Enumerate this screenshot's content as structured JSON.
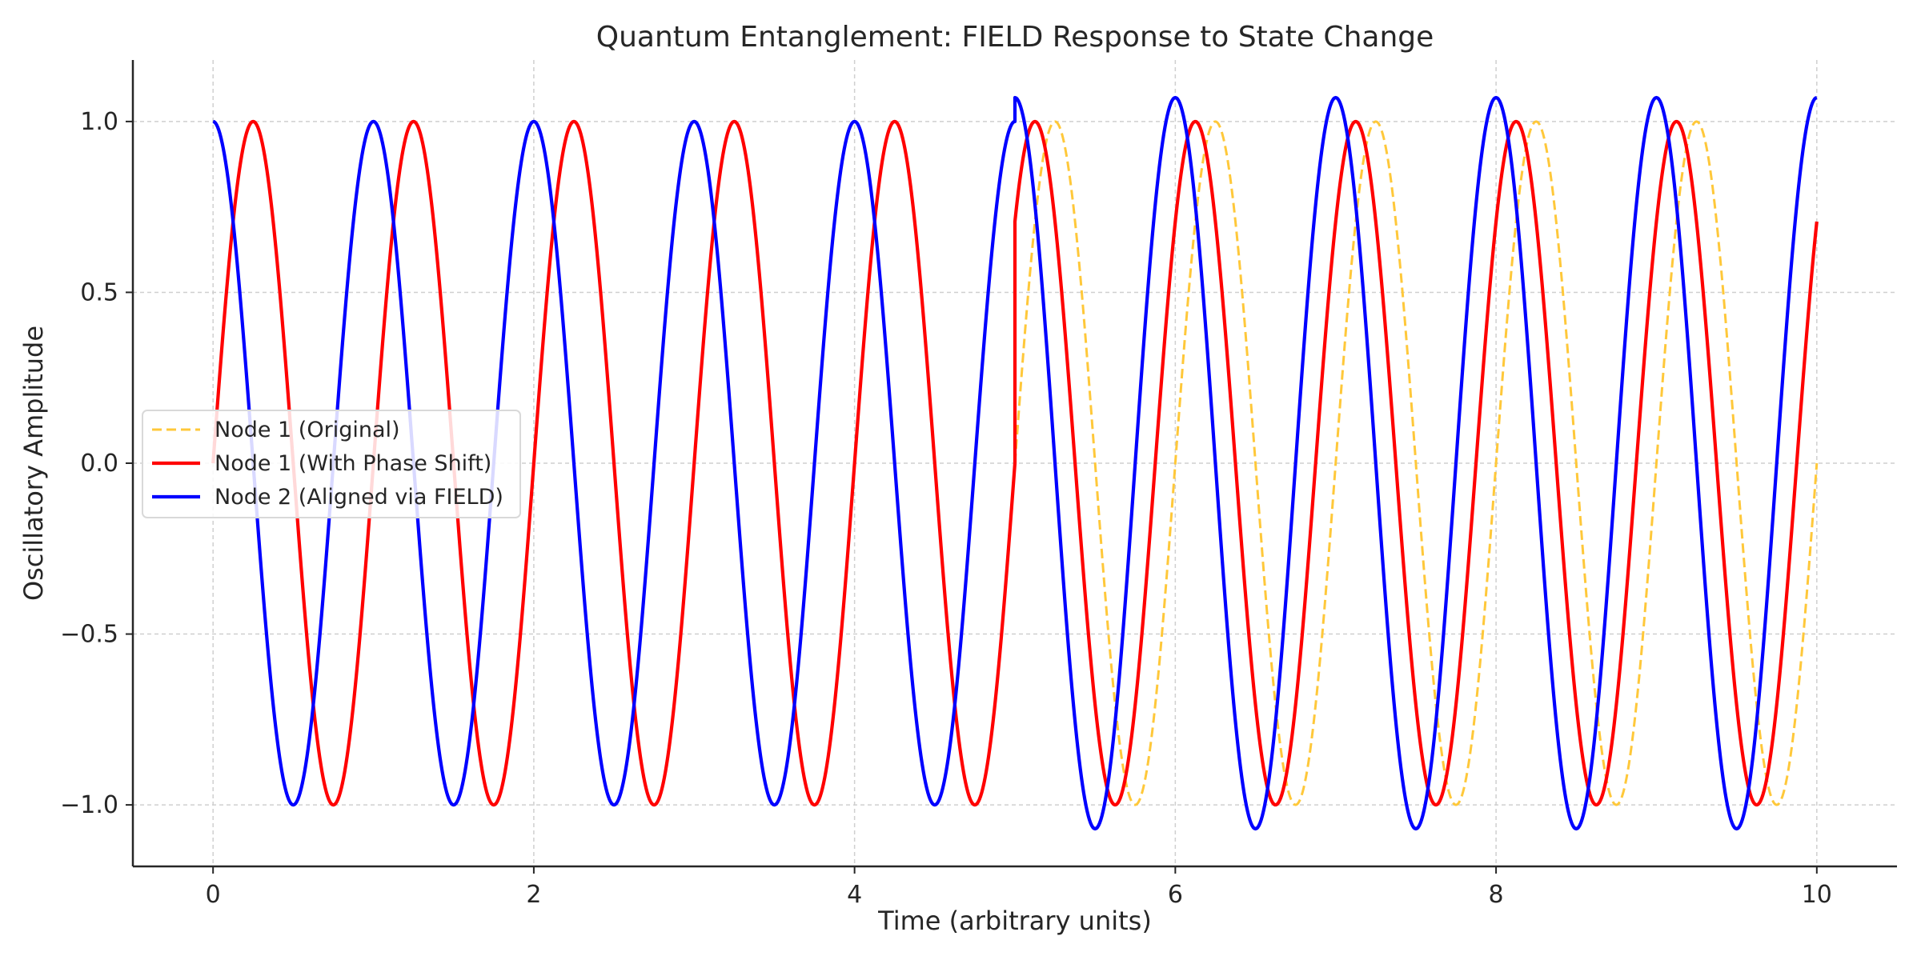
{
  "chart_data": {
    "type": "line",
    "title": "Quantum Entanglement: FIELD Response to State Change",
    "xlabel": "Time (arbitrary units)",
    "ylabel": "Oscillatory Amplitude",
    "xlim": [
      -0.5,
      10.5
    ],
    "ylim": [
      -1.18,
      1.18
    ],
    "x_ticks": [
      0,
      2,
      4,
      6,
      8,
      10
    ],
    "x_tick_labels": [
      "0",
      "2",
      "4",
      "6",
      "8",
      "10"
    ],
    "y_ticks": [
      1.0,
      0.5,
      0.0,
      -0.5,
      -1.0
    ],
    "y_tick_labels": [
      "1.0",
      "0.5",
      "0.0",
      "−0.5",
      "−1.0"
    ],
    "grid": true,
    "legend_position": "center-left",
    "x_range": [
      0,
      10
    ],
    "series": [
      {
        "name": "Node 1 (Original)",
        "color": "#FFC83A",
        "style": "dashed",
        "segments": [
          {
            "x_start": 5.0,
            "x_end": 10.0,
            "function": "sin",
            "amplitude": 1.0,
            "frequency": 1.0,
            "phase_deg": 0
          }
        ]
      },
      {
        "name": "Node 1 (With Phase Shift)",
        "color": "#FF0000",
        "style": "solid",
        "segments": [
          {
            "x_start": 0.0,
            "x_end": 5.0,
            "function": "sin",
            "amplitude": 1.0,
            "frequency": 1.0,
            "phase_deg": 0
          },
          {
            "x_start": 5.0,
            "x_end": 10.0,
            "function": "sin",
            "amplitude": 1.0,
            "frequency": 1.0,
            "phase_deg": 45
          }
        ]
      },
      {
        "name": "Node 2 (Aligned via FIELD)",
        "color": "#0000FF",
        "style": "solid",
        "segments": [
          {
            "x_start": 0.0,
            "x_end": 5.0,
            "function": "cos",
            "amplitude": 1.0,
            "frequency": 1.0,
            "phase_deg": 0
          },
          {
            "x_start": 5.0,
            "x_end": 10.0,
            "function": "cos",
            "amplitude": 1.07,
            "frequency": 1.0,
            "phase_deg": 0
          }
        ]
      }
    ]
  }
}
